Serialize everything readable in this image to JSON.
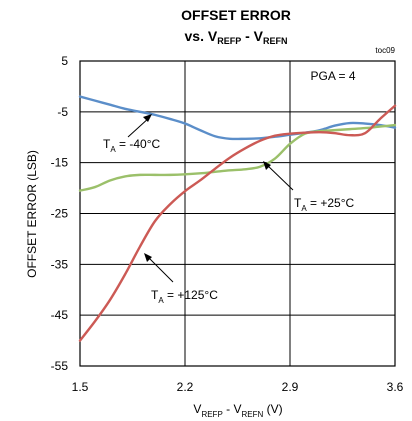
{
  "chart_data": {
    "type": "line",
    "title_line1": "OFFSET ERROR",
    "title_line2_prefix": "vs. V",
    "title_line2_sub1": "REFP",
    "title_line2_mid": " - V",
    "title_line2_sub2": "REFN",
    "code": "toc09",
    "condition": "PGA = 4",
    "ylabel": "OFFSET ERROR (LSB)",
    "xlabel_prefix": "V",
    "xlabel_sub1": "REFP",
    "xlabel_mid": " - V",
    "xlabel_sub2": "REFN",
    "xlabel_suffix": " (V)",
    "xlim": [
      1.5,
      3.6
    ],
    "ylim": [
      -55,
      5
    ],
    "xticks": [
      1.5,
      2.2,
      2.9,
      3.6
    ],
    "xtick_labels": [
      "1.5",
      "2.2",
      "2.9",
      "3.6"
    ],
    "yticks": [
      5,
      -5,
      -15,
      -25,
      -35,
      -45,
      -55
    ],
    "ytick_labels": [
      "5",
      "-5",
      "-15",
      "-25",
      "-35",
      "-45",
      "-55"
    ],
    "grid": true,
    "series": [
      {
        "name": "-40°C",
        "color": "#5b8ec9",
        "x": [
          1.5,
          1.6,
          1.7,
          1.8,
          1.9,
          2.0,
          2.1,
          2.2,
          2.3,
          2.4,
          2.5,
          2.6,
          2.7,
          2.8,
          2.9,
          3.0,
          3.1,
          3.2,
          3.3,
          3.4,
          3.5,
          3.6
        ],
        "y": [
          -2.0,
          -2.8,
          -3.6,
          -4.4,
          -5.0,
          -5.6,
          -6.4,
          -7.3,
          -8.6,
          -9.8,
          -10.3,
          -10.3,
          -10.2,
          -9.9,
          -9.5,
          -9.1,
          -8.6,
          -7.7,
          -7.2,
          -7.3,
          -7.6,
          -8.1
        ]
      },
      {
        "name": "+25°C",
        "color": "#9bc06a",
        "x": [
          1.5,
          1.6,
          1.7,
          1.8,
          1.9,
          2.0,
          2.1,
          2.2,
          2.3,
          2.4,
          2.5,
          2.6,
          2.7,
          2.8,
          2.9,
          3.0,
          3.1,
          3.2,
          3.3,
          3.4,
          3.5,
          3.6
        ],
        "y": [
          -20.5,
          -19.8,
          -18.5,
          -17.7,
          -17.4,
          -17.4,
          -17.4,
          -17.3,
          -17.1,
          -16.8,
          -16.5,
          -16.3,
          -15.8,
          -14.2,
          -11.3,
          -9.3,
          -8.8,
          -8.6,
          -8.4,
          -8.2,
          -7.9,
          -7.6
        ]
      },
      {
        "name": "+125°C",
        "color": "#cc5a55",
        "x": [
          1.5,
          1.6,
          1.7,
          1.8,
          1.9,
          2.0,
          2.1,
          2.2,
          2.3,
          2.4,
          2.5,
          2.6,
          2.7,
          2.8,
          2.9,
          3.0,
          3.1,
          3.2,
          3.3,
          3.4,
          3.5,
          3.6
        ],
        "y": [
          -50.0,
          -46.2,
          -42.0,
          -37.0,
          -31.5,
          -26.5,
          -23.2,
          -20.6,
          -18.5,
          -16.2,
          -14.0,
          -12.2,
          -10.7,
          -9.7,
          -9.3,
          -9.1,
          -9.0,
          -9.2,
          -9.6,
          -9.2,
          -6.4,
          -3.8
        ]
      }
    ],
    "annotations": [
      {
        "prefix": "T",
        "sub": "A",
        "text": " = -40°C"
      },
      {
        "prefix": "T",
        "sub": "A",
        "text": " = +25°C"
      },
      {
        "prefix": "T",
        "sub": "A",
        "text": " = +125°C"
      }
    ]
  }
}
